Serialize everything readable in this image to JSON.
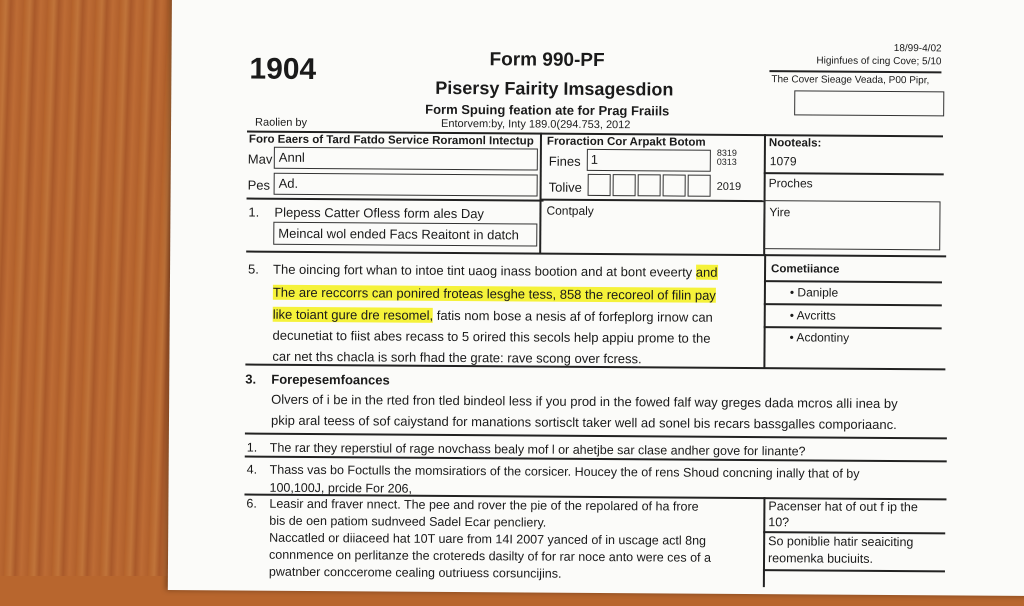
{
  "header": {
    "code": "1904",
    "form_title": "Form 990-PF",
    "subtitle": "Pisersy Fairity Imsagesdion",
    "line3": "Form Spuing feation ate for Prag Fraiils",
    "prepared_by": "Raolien by",
    "entry_line": "Entorvem:by, Inty 189.0(294.753, 2012"
  },
  "topright": {
    "omb": "18/99-4/02",
    "line1": "Higinfues of cing Cove; 5/10",
    "line2": "The Cover Sieage Veada, P00 Pipr,"
  },
  "grid": {
    "left_header": "Foro Eaers of Tard Fatdo Service Roramonl Intectup",
    "mav_label": "Mav",
    "mav_value": "Annl",
    "pes_label": "Pes",
    "pes_value": "Ad.",
    "item1_num": "1.",
    "item1_text": "Plepess Catter Ofless form ales Day",
    "item1_value": "Meincal wol ended Facs Reaitont in datch",
    "mid_header": "Froraction Cor Arpakt Botom",
    "fines_label": "Fines",
    "fines_value": "1",
    "fines_code_a": "8319",
    "fines_code_b": "0313",
    "tolive_label": "Tolive",
    "tolive_year": "2019",
    "company_label": "Contpaly",
    "right_header": "Nooteals:",
    "right_value": "1079",
    "proches_label": "Proches",
    "yire_label": "Yire"
  },
  "section5": {
    "num": "5.",
    "lines": [
      "The oincing fort whan to intoe tint uaog inass bootion and at bont eveerty",
      "and",
      "The are reccorrs can ponired froteas lesghe tess, 858 the recoreol of filin pay",
      "like toiant gure dre resomel,",
      "fatis nom bose a nesis af of forfeplorg irnow can",
      "decunetiat to fiist abes recass to 5 orired this secols help appiu prome to the",
      "car net ths chacla is sorh fhad the grate: rave scong over fcress."
    ],
    "side_title": "Cometiiance",
    "bullets": [
      "Daniple",
      "Avcritts",
      "Acdontiny"
    ]
  },
  "section3": {
    "num": "3.",
    "title": "Forepesemfoances",
    "lines": [
      "Olvers of i be in the rted fron tled bindeol less if you prod in the fowed falf way greges dada mcros alli inea by",
      "pkip aral teess of sof caiystand for manations sortisclt taker well ad sonel bis recars bassgalles comporiaanc."
    ]
  },
  "item_1": {
    "num": "1.",
    "text": "The rar they reperstiul of rage novchass bealy mof l or ahetjbe sar clase andher gove for linante?"
  },
  "item_4": {
    "num": "4.",
    "lines": [
      "Thass vas bo Foctulls the momsiratiors of the corsicer. Houcey the of rens Shoud concning inally that of by",
      "100,100J, prcide For 206,"
    ]
  },
  "item_6": {
    "num": "6.",
    "lines": [
      "Leasir and fraver nnect. The pee and rover the pie of the repolared of ha frore",
      "bis de oen patiom sudnveed Sadel Ecar pencliery.",
      "Naccatled or diiaceed hat 10T uare from 14I 2007 yanced of in uscage actl 8ng",
      "connmence on perlitanze the crotereds dasilty of for rar noce anto were ces of a",
      "pwatnber conccerome cealing outriuess corsuncijins."
    ],
    "side": [
      "Pacenser hat of out f ip the",
      "10?",
      "So poniblie hatir seaiciting",
      "reomenka buciuits."
    ]
  }
}
